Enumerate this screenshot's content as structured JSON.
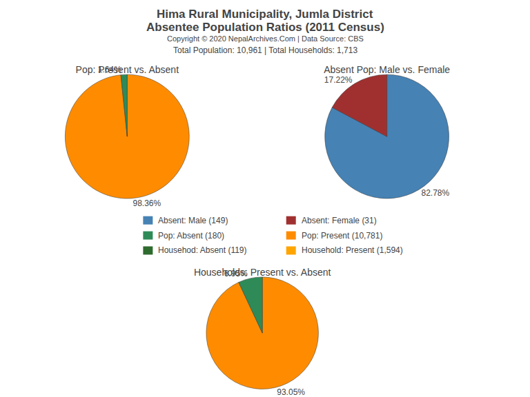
{
  "title": "Hima Rural Municipality, Jumla District",
  "subtitle": "Absentee Population Ratios (2011 Census)",
  "annotations": [
    "Copyright © 2020 NepalArchives.Com | Data Source: CBS",
    "Total Population: 10,961 | Total Households: 1,713"
  ],
  "legend_items": [
    {
      "label": "Absent: Male (149)",
      "color": "#4682B4"
    },
    {
      "label": "Absent: Female (31)",
      "color": "#A03030"
    },
    {
      "label": "Pop: Absent (180)",
      "color": "#2E8B57"
    },
    {
      "label": "Pop: Present (10,781)",
      "color": "#FF8C00"
    },
    {
      "label": "Househod: Absent (119)",
      "color": "#2E6B2E"
    },
    {
      "label": "Household: Present (1,594)",
      "color": "#FFA500"
    }
  ],
  "chart_data": [
    {
      "type": "pie",
      "title": "Pop: Present vs. Absent",
      "values": [
        98.36,
        1.64
      ],
      "value_labels": [
        "98.36%",
        "1.64%"
      ],
      "colors": [
        "#FF8C00",
        "#2E8B57"
      ],
      "data_labels": true
    },
    {
      "type": "pie",
      "title": "Absent Pop: Male vs. Female",
      "values": [
        82.78,
        17.22
      ],
      "value_labels": [
        "82.78%",
        "17.22%"
      ],
      "colors": [
        "#4682B4",
        "#A03030"
      ],
      "data_labels": true
    },
    {
      "type": "pie",
      "title": "Households: Present vs. Absent",
      "values": [
        93.05,
        6.95
      ],
      "value_labels": [
        "93.05%",
        "6.95%"
      ],
      "colors": [
        "#FF8C00",
        "#2E8B57"
      ],
      "data_labels": true
    }
  ]
}
